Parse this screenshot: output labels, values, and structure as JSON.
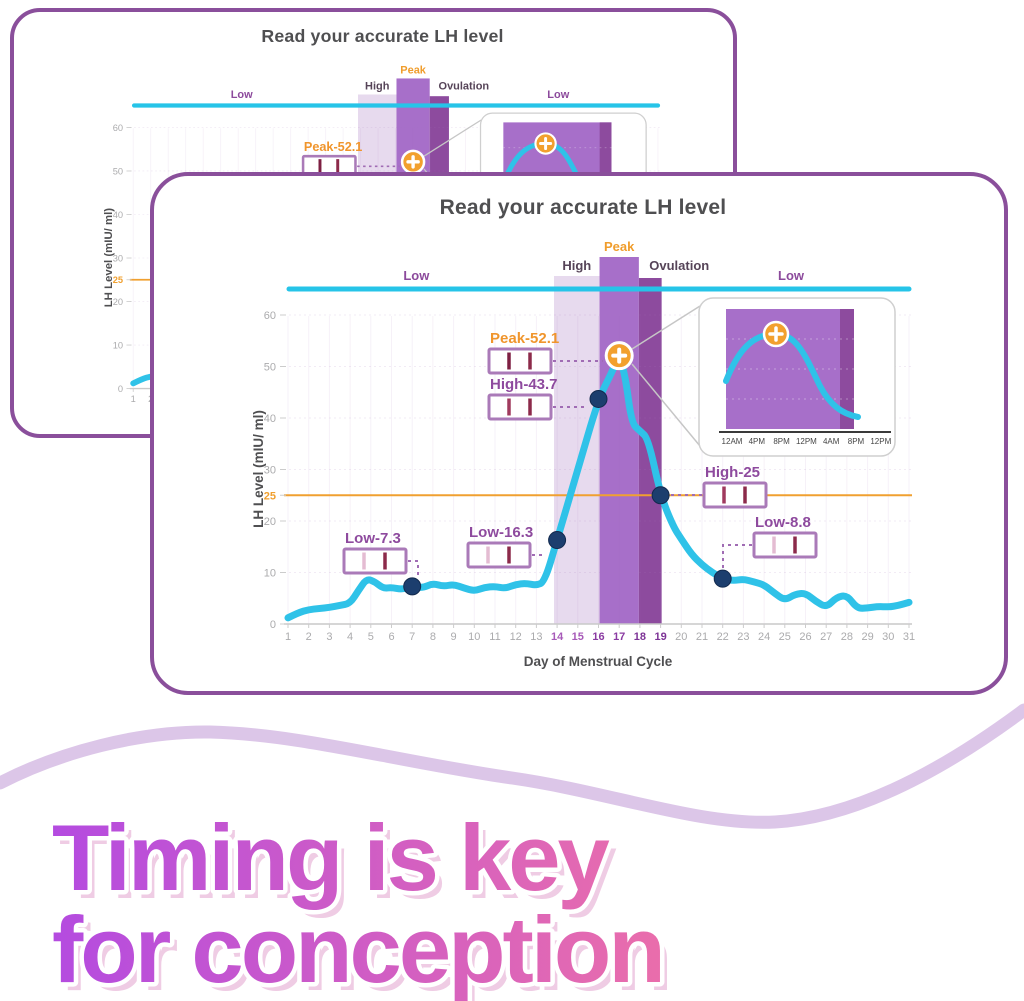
{
  "back_card": {
    "title": "Read your accurate LH level"
  },
  "front_card": {
    "title": "Read your accurate LH level"
  },
  "tagline": {
    "line1": "Timing is key",
    "line2": "for conception",
    "gradient_start": "#b44be0",
    "gradient_end": "#ec6fa9",
    "shadow": "#efcce4",
    "wave_color": "#dcc6e8"
  },
  "colors": {
    "card_border": "#8a4f9b",
    "cyan": "#26c4e8",
    "title": "#4f4f51",
    "dot": "#1c3e6e",
    "marker_orange": "#f2a02e",
    "strip_border": "#aa7ab8",
    "strip_line": "#8c2a4a",
    "label_purple": "#8e4a9e"
  },
  "chart_data": {
    "type": "line",
    "title": "Read your accurate LH level",
    "xlabel": "Day of Menstrual Cycle",
    "ylabel": "LH Level (mIU/ ml)",
    "xlim": [
      1,
      31
    ],
    "ylim": [
      0,
      60
    ],
    "yticks": [
      0,
      10,
      20,
      25,
      30,
      40,
      50,
      60
    ],
    "days": [
      1,
      2,
      3,
      4,
      5,
      6,
      7,
      8,
      9,
      10,
      11,
      12,
      13,
      14,
      15,
      16,
      17,
      18,
      19,
      20,
      21,
      22,
      23,
      24,
      25,
      26,
      27,
      28,
      29,
      30,
      31
    ],
    "threshold": {
      "value": 25,
      "color": "#f0a030"
    },
    "line_color": "#2fc2e8",
    "grid": true,
    "legend_position": "none",
    "zones": [
      {
        "label": "Low",
        "type": "range",
        "center_day": 7.2,
        "label_color": "#8c4a9c"
      },
      {
        "label": "High",
        "type": "band",
        "from_day": 13.85,
        "to_day": 16.05,
        "color": "#e7daee",
        "label_color": "#564458"
      },
      {
        "label": "Peak",
        "type": "band",
        "from_day": 16.05,
        "to_day": 17.95,
        "color": "#a76fc9",
        "label_color": "#f09d2c"
      },
      {
        "label": "Ovulation",
        "type": "band",
        "from_day": 17.95,
        "to_day": 19.05,
        "color": "#8d4b9e",
        "label_color": "#564458"
      },
      {
        "label": "Low",
        "type": "range",
        "center_day": 25.3,
        "label_color": "#8c4a9c"
      }
    ],
    "x": [
      1,
      1.5,
      2,
      2.5,
      3,
      3.5,
      4,
      4.4,
      4.8,
      5.2,
      5.6,
      6,
      6.5,
      7,
      7.5,
      8,
      8.5,
      9,
      9.5,
      10,
      10.5,
      11,
      11.5,
      12,
      12.5,
      13,
      13.4,
      14,
      15,
      16,
      16.6,
      17,
      17.3,
      17.6,
      18,
      18.4,
      19,
      19.6,
      20,
      20.5,
      21,
      21.5,
      22,
      22.5,
      23,
      23.5,
      24,
      24.5,
      25,
      25.5,
      26,
      26.5,
      27,
      27.5,
      28,
      28.5,
      29,
      29.5,
      30,
      30.5,
      31
    ],
    "y": [
      1.2,
      2.2,
      2.8,
      3.0,
      3.2,
      3.6,
      4.0,
      6.5,
      8.8,
      8.2,
      6.9,
      7.1,
      6.7,
      7.3,
      7.0,
      7.9,
      7.3,
      7.7,
      7.0,
      6.4,
      7.1,
      7.3,
      6.9,
      7.7,
      7.9,
      7.5,
      8.2,
      16.3,
      30,
      43.7,
      48.5,
      52.1,
      48,
      39,
      37.5,
      36,
      25,
      19,
      16.5,
      13.5,
      11.5,
      10,
      8.8,
      8.4,
      8.7,
      8.2,
      7.6,
      6.0,
      4.6,
      5.8,
      6.0,
      4.4,
      3.2,
      5.2,
      5.6,
      3.0,
      3.1,
      3.4,
      3.3,
      3.6,
      4.2
    ],
    "annotations": [
      {
        "id": "low73",
        "label": "Low-7.3",
        "day": 7,
        "value": 7.3,
        "kind": "Low"
      },
      {
        "id": "low163",
        "label": "Low-16.3",
        "day": 14,
        "value": 16.3,
        "kind": "Low"
      },
      {
        "id": "high437",
        "label": "High-43.7",
        "day": 16,
        "value": 43.7,
        "kind": "High"
      },
      {
        "id": "peak521",
        "label": "Peak-52.1",
        "day": 17,
        "value": 52.1,
        "kind": "Peak"
      },
      {
        "id": "high25",
        "label": "High-25",
        "day": 19,
        "value": 25,
        "kind": "High"
      },
      {
        "id": "low88",
        "label": "Low-8.8",
        "day": 22,
        "value": 8.8,
        "kind": "Low"
      }
    ],
    "inset": {
      "times": [
        "12AM",
        "4PM",
        "8PM",
        "12PM",
        "4AM",
        "8PM",
        "12PM"
      ],
      "area_color": "#a76fc9",
      "late_color": "#8d4b9e"
    }
  }
}
